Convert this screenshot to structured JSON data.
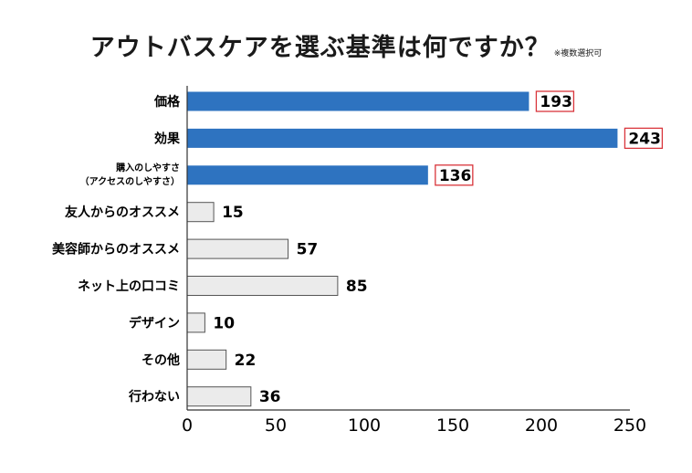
{
  "title": "アウトバスケアを選ぶ基準は何ですか？",
  "note": "※複数選択可",
  "chart_data": {
    "type": "bar",
    "orientation": "horizontal",
    "categories": [
      "価格",
      "効果",
      "購入のしやすさ\n（アクセスのしやすさ）",
      "友人からのオススメ",
      "美容師からのオススメ",
      "ネット上の口コミ",
      "デザイン",
      "その他",
      "行わない"
    ],
    "values": [
      193,
      243,
      136,
      15,
      57,
      85,
      10,
      22,
      36
    ],
    "highlighted": [
      true,
      true,
      true,
      false,
      false,
      false,
      false,
      false,
      false
    ],
    "xlim": [
      0,
      250
    ],
    "xticks": [
      0,
      50,
      100,
      150,
      200,
      250
    ],
    "colors": {
      "highlight": "#2e73c0",
      "normal": "#ebebeb",
      "normal_border": "#555555",
      "label_box": "#d9353b"
    }
  }
}
